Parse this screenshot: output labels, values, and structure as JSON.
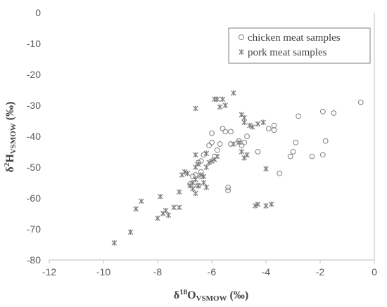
{
  "chart_data": {
    "type": "scatter",
    "xlabel": {
      "main": "δ",
      "sup": "18",
      "base": "O",
      "sub": "VSMOW",
      "unit": " (‰)"
    },
    "ylabel": {
      "main": "δ",
      "sup": "2",
      "base": "H",
      "sub": "VSMOW",
      "unit": " (‰)"
    },
    "xlim": [
      -12,
      0
    ],
    "ylim": [
      -80,
      0
    ],
    "x_ticks": [
      "-12",
      "-10",
      "-8",
      "-6",
      "-4",
      "-2",
      "0"
    ],
    "y_ticks": [
      "0",
      "-10",
      "-20",
      "-30",
      "-40",
      "-50",
      "-60",
      "-70",
      "-80"
    ],
    "x_tick_values": [
      -12,
      -10,
      -8,
      -6,
      -4,
      -2,
      0
    ],
    "y_tick_values": [
      0,
      -10,
      -20,
      -30,
      -40,
      -50,
      -60,
      -70,
      -80
    ],
    "grid": false,
    "legend_position": "top-right",
    "series": [
      {
        "name": "chicken meat samples",
        "marker": "circle",
        "points": [
          [
            -0.5,
            -29
          ],
          [
            -1.9,
            -32
          ],
          [
            -1.5,
            -32.5
          ],
          [
            -1.8,
            -41.5
          ],
          [
            -1.9,
            -46
          ],
          [
            -2.3,
            -46.5
          ],
          [
            -2.8,
            -33.5
          ],
          [
            -2.9,
            -42
          ],
          [
            -3.0,
            -45
          ],
          [
            -3.1,
            -46.5
          ],
          [
            -3.5,
            -52
          ],
          [
            -3.7,
            -36.5
          ],
          [
            -3.7,
            -38
          ],
          [
            -3.9,
            -37.5
          ],
          [
            -4.3,
            -45
          ],
          [
            -4.7,
            -40
          ],
          [
            -4.8,
            -42
          ],
          [
            -4.9,
            -43
          ],
          [
            -5.0,
            -41.5
          ],
          [
            -5.3,
            -38.5
          ],
          [
            -5.3,
            -42.5
          ],
          [
            -5.5,
            -38.5
          ],
          [
            -5.6,
            -37.5
          ],
          [
            -5.7,
            -42.5
          ],
          [
            -5.8,
            -44.5
          ],
          [
            -5.9,
            -46.5
          ],
          [
            -6.0,
            -39
          ],
          [
            -6.0,
            -42
          ],
          [
            -6.1,
            -43
          ],
          [
            -6.3,
            -46
          ],
          [
            -6.4,
            -48
          ],
          [
            -6.4,
            -51.5
          ],
          [
            -6.5,
            -48.5
          ],
          [
            -6.6,
            -52.5
          ],
          [
            -6.7,
            -53
          ],
          [
            -6.8,
            -55.5
          ],
          [
            -6.4,
            -53
          ],
          [
            -6.5,
            -56
          ],
          [
            -5.4,
            -56.5
          ],
          [
            -5.4,
            -57.5
          ]
        ]
      },
      {
        "name": "pork meat samples",
        "marker": "asterisk",
        "points": [
          [
            -9.6,
            -74.5
          ],
          [
            -9.0,
            -71
          ],
          [
            -8.8,
            -63.5
          ],
          [
            -8.6,
            -61
          ],
          [
            -8.0,
            -66.5
          ],
          [
            -7.9,
            -59.5
          ],
          [
            -7.8,
            -65
          ],
          [
            -7.7,
            -64
          ],
          [
            -7.6,
            -65.5
          ],
          [
            -7.4,
            -63
          ],
          [
            -7.2,
            -58
          ],
          [
            -7.2,
            -63
          ],
          [
            -7.1,
            -52.5
          ],
          [
            -7.0,
            -51.5
          ],
          [
            -6.9,
            -52
          ],
          [
            -6.8,
            -56
          ],
          [
            -6.7,
            -55
          ],
          [
            -6.6,
            -50
          ],
          [
            -6.5,
            -49
          ],
          [
            -6.6,
            -54
          ],
          [
            -6.7,
            -57
          ],
          [
            -6.6,
            -58.5
          ],
          [
            -6.5,
            -56
          ],
          [
            -6.4,
            -52.5
          ],
          [
            -6.3,
            -53
          ],
          [
            -6.3,
            -55
          ],
          [
            -6.2,
            -56.5
          ],
          [
            -6.2,
            -50
          ],
          [
            -6.1,
            -48.5
          ],
          [
            -6.2,
            -45.5
          ],
          [
            -6.0,
            -48
          ],
          [
            -5.9,
            -47.5
          ],
          [
            -6.6,
            -46
          ],
          [
            -6.6,
            -31
          ],
          [
            -5.9,
            -28
          ],
          [
            -5.8,
            -28
          ],
          [
            -5.7,
            -30.5
          ],
          [
            -5.6,
            -28
          ],
          [
            -5.5,
            -30
          ],
          [
            -5.2,
            -26
          ],
          [
            -5.2,
            -42.5
          ],
          [
            -5.0,
            -42
          ],
          [
            -4.9,
            -45
          ],
          [
            -4.8,
            -47
          ],
          [
            -4.7,
            -46
          ],
          [
            -4.9,
            -33
          ],
          [
            -4.8,
            -34
          ],
          [
            -4.8,
            -35.5
          ],
          [
            -4.6,
            -36.5
          ],
          [
            -4.5,
            -37
          ],
          [
            -4.3,
            -36
          ],
          [
            -4.1,
            -35.5
          ],
          [
            -4.0,
            -50.5
          ],
          [
            -4.4,
            -62.5
          ],
          [
            -4.3,
            -62
          ],
          [
            -4.0,
            -62.5
          ],
          [
            -3.8,
            -62
          ],
          [
            -5.8,
            -46.5
          ]
        ]
      }
    ]
  },
  "legend": {
    "items": [
      {
        "label": "chicken meat samples",
        "marker": "circle"
      },
      {
        "label": "pork meat samples",
        "marker": "asterisk"
      }
    ]
  },
  "colors": {
    "chicken_marker": "#7f7f7f",
    "pork_marker": "#7f7f7f",
    "axis": "#bfbfbf",
    "text": "#595959"
  }
}
